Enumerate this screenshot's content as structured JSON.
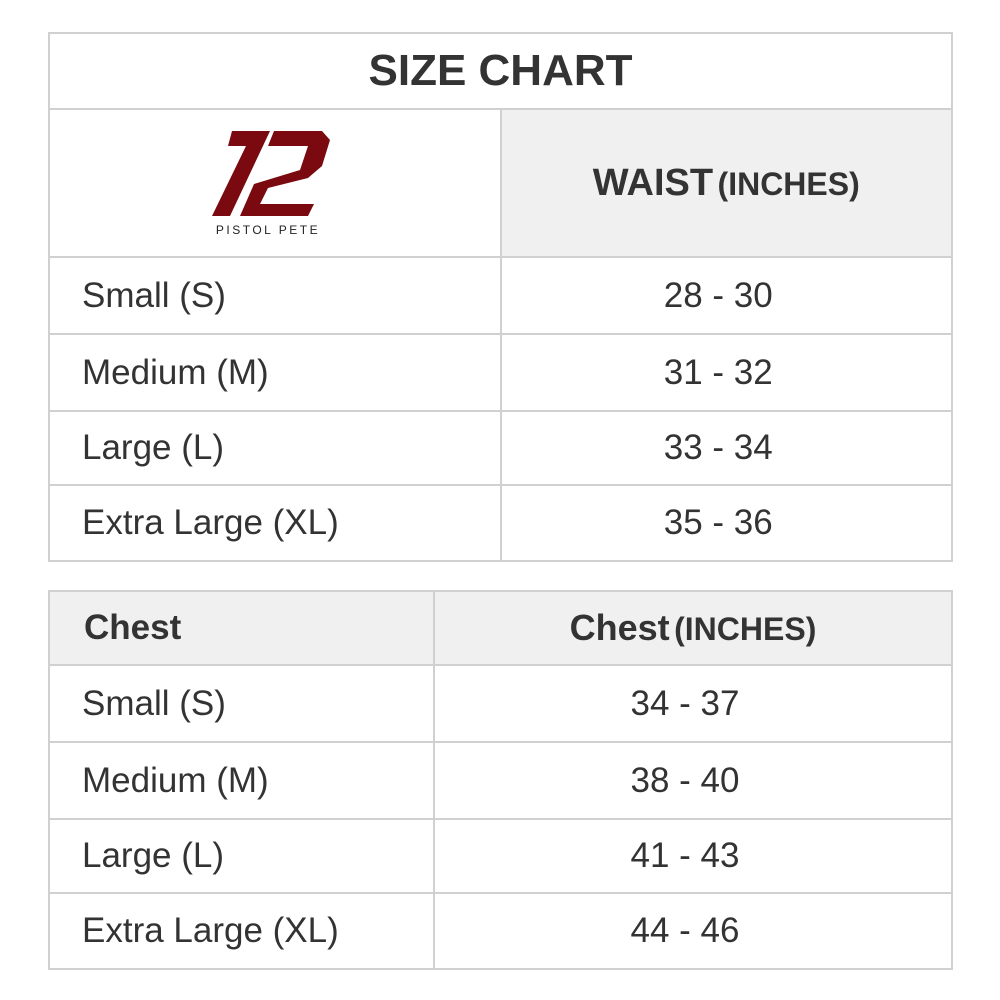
{
  "title": "SIZE CHART",
  "brand": {
    "name": "PISTOL PETE",
    "color": "#7a0a0f"
  },
  "waist": {
    "header_main": "WAIST",
    "header_unit": "(INCHES)",
    "rows": [
      {
        "size": "Small (S)",
        "value": "28 - 30"
      },
      {
        "size": "Medium (M)",
        "value": "31 - 32"
      },
      {
        "size": "Large (L)",
        "value": "33 - 34"
      },
      {
        "size": "Extra Large (XL)",
        "value": "35 - 36"
      }
    ]
  },
  "chest": {
    "header_left": "Chest",
    "header_main": "Chest",
    "header_unit": "(INCHES)",
    "rows": [
      {
        "size": "Small (S)",
        "value": "34 - 37"
      },
      {
        "size": "Medium (M)",
        "value": "38 - 40"
      },
      {
        "size": "Large (L)",
        "value": "41 - 43"
      },
      {
        "size": "Extra Large (XL)",
        "value": "44 - 46"
      }
    ]
  }
}
